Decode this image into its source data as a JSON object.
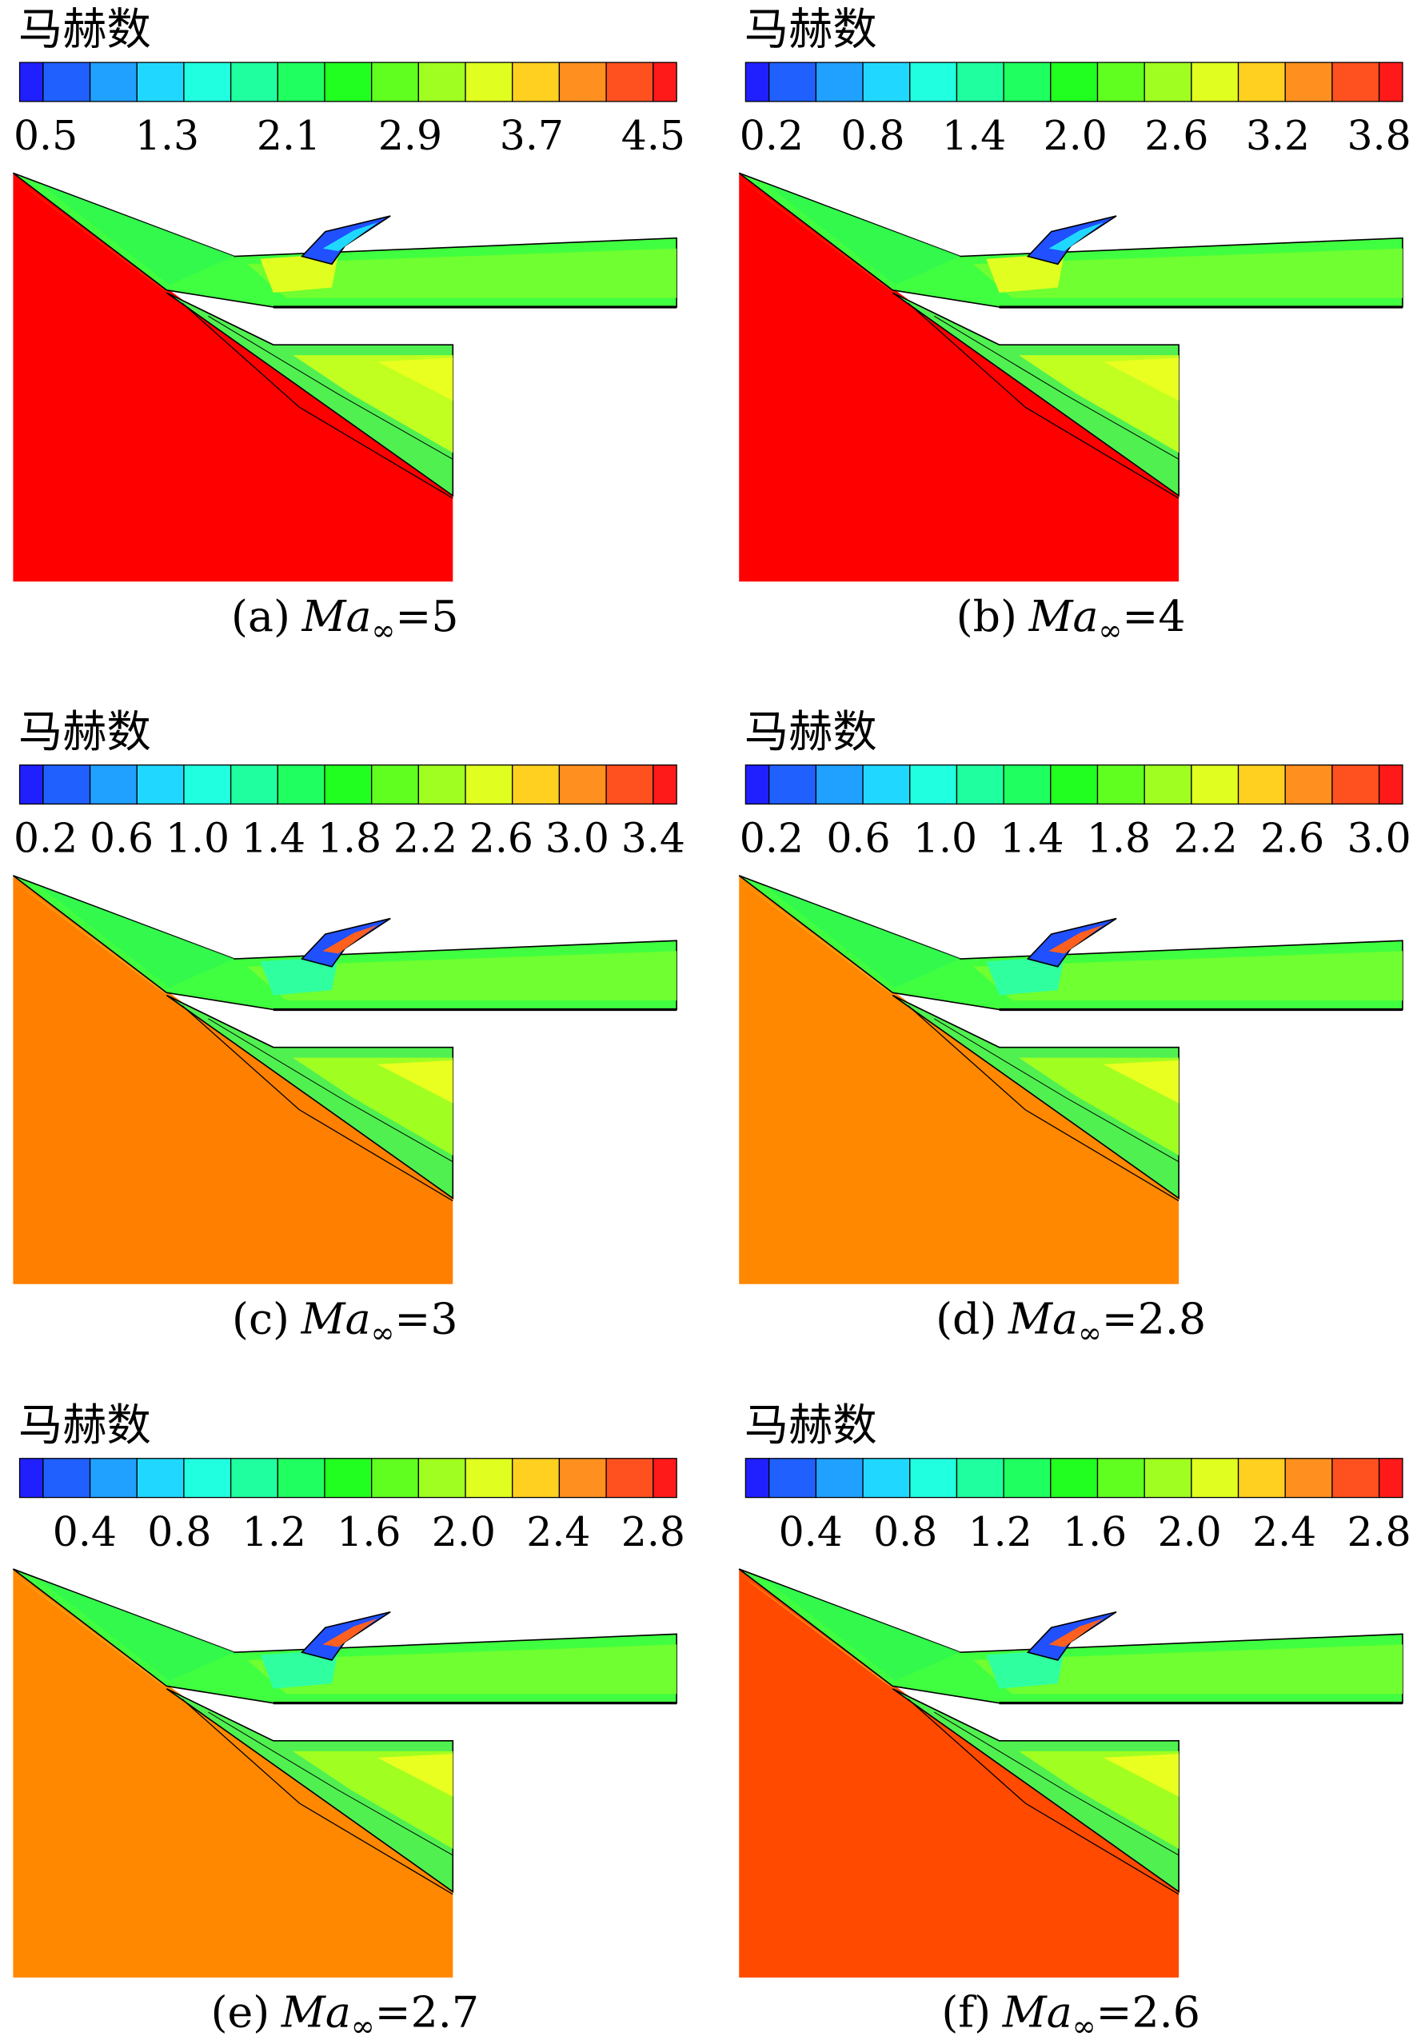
{
  "panels": [
    {
      "legend_title": "马赫数",
      "colorbar_ticks": [
        "0.5",
        "1.3",
        "2.1",
        "2.9",
        "3.7",
        "4.5"
      ],
      "caption": {
        "label": "(a)",
        "symbol": "Ma",
        "subscript": "∞",
        "value": "=5"
      }
    },
    {
      "legend_title": "马赫数",
      "colorbar_ticks": [
        "0.2",
        "0.8",
        "1.4",
        "2.0",
        "2.6",
        "3.2",
        "3.8"
      ],
      "caption": {
        "label": "(b)",
        "symbol": "Ma",
        "subscript": "∞",
        "value": "=4"
      }
    },
    {
      "legend_title": "马赫数",
      "colorbar_ticks": [
        "0.2",
        "0.6",
        "1.0",
        "1.4",
        "1.8",
        "2.2",
        "2.6",
        "3.0",
        "3.4"
      ],
      "caption": {
        "label": "(c)",
        "symbol": "Ma",
        "subscript": "∞",
        "value": "=3"
      }
    },
    {
      "legend_title": "马赫数",
      "colorbar_ticks": [
        "0.2",
        "0.6",
        "1.0",
        "1.4",
        "1.8",
        "2.2",
        "2.6",
        "3.0"
      ],
      "caption": {
        "label": "(d)",
        "symbol": "Ma",
        "subscript": "∞",
        "value": "=2.8"
      }
    },
    {
      "legend_title": "马赫数",
      "colorbar_ticks": [
        "0.4",
        "0.8",
        "1.2",
        "1.6",
        "2.0",
        "2.4",
        "2.8"
      ],
      "caption": {
        "label": "(e)",
        "symbol": "Ma",
        "subscript": "∞",
        "value": "=2.7"
      }
    },
    {
      "legend_title": "马赫数",
      "colorbar_ticks": [
        "0.4",
        "0.8",
        "1.2",
        "1.6",
        "2.0",
        "2.4",
        "2.8"
      ],
      "caption": {
        "label": "(f)",
        "symbol": "Ma",
        "subscript": "∞",
        "value": "=2.6"
      }
    }
  ]
}
